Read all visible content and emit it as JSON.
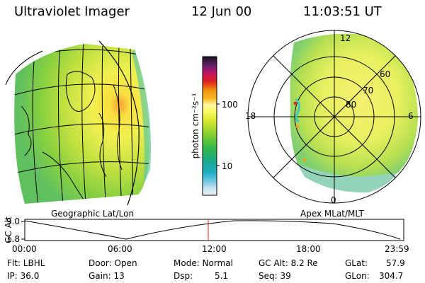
{
  "header": {
    "title": "Ultraviolet Imager",
    "date": "12 Jun 00",
    "time": "11:03:51 UT"
  },
  "colorbar": {
    "unit_label": "photon cm⁻²s⁻¹",
    "ticks": [
      "100",
      "10"
    ]
  },
  "geo_panel": {
    "caption": "Geographic Lat/Lon"
  },
  "polar_panel": {
    "caption": "Apex MLat/MLT",
    "mlt_labels": {
      "top": "12",
      "left": "18",
      "right": "6",
      "bottom": "0"
    },
    "lat_labels": [
      "60",
      "70",
      "80"
    ]
  },
  "timeline": {
    "axis_label": "GC Alt",
    "y_ticks": [
      "9.0",
      "1.8"
    ],
    "x_ticks": [
      "00:00",
      "06:00",
      "12:00",
      "18:00",
      "23:59"
    ],
    "current_time_marker": "11:03:51"
  },
  "info": {
    "filter": "Flt: LBHL",
    "ip": "IP: 36.0",
    "door": "Door: Open",
    "gain": "Gain: 13",
    "mode": "Mode: Normal",
    "dsp_label": "Dsp:",
    "dsp_value": "5.1",
    "gc_alt": "GC Alt: 8.2 Re",
    "seq": "Seq: 39",
    "glat_label": "GLat:",
    "glat_value": "57.9",
    "glon_label": "GLon:",
    "glon_value": "304.7"
  },
  "colors": {
    "timeline_marker": "#e02020"
  }
}
